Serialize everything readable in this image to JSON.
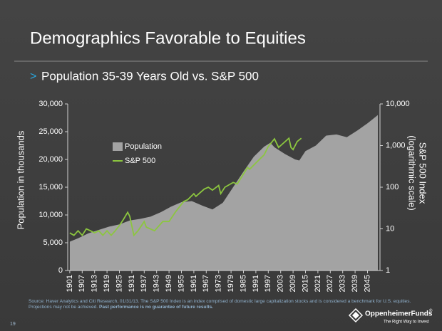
{
  "title": "Demographics Favorable to Equities",
  "bullet": ">",
  "subtitle": "Population 35-39 Years Old vs. S&P 500",
  "chart_data": {
    "type": "area-line",
    "ylabel": "Population in thousands",
    "y2label": [
      "S&P 500 Index",
      "(logarithmic scale)"
    ],
    "xlim": [
      1900,
      2050
    ],
    "xticks": [
      1901,
      1907,
      1913,
      1919,
      1925,
      1931,
      1937,
      1943,
      1949,
      1955,
      1961,
      1967,
      1973,
      1979,
      1985,
      1991,
      1997,
      2003,
      2009,
      2015,
      2021,
      2027,
      2033,
      2039,
      2045
    ],
    "ylim": [
      0,
      30000
    ],
    "yticks": [
      0,
      {
        "value": 5000,
        "label": "5,000"
      },
      {
        "value": 10000,
        "label": "10,000"
      },
      {
        "value": 15000,
        "label": "15,000"
      },
      {
        "value": 20000,
        "label": "20,000"
      },
      {
        "value": 25000,
        "label": "25,000"
      },
      {
        "value": 30000,
        "label": "30,000"
      }
    ],
    "y2lim": [
      1,
      10000
    ],
    "y2scale": "log",
    "y2ticks": [
      1,
      10,
      100,
      {
        "value": 1000,
        "label": "1,000"
      },
      {
        "value": 10000,
        "label": "10,000"
      }
    ],
    "series": [
      {
        "name": "Population",
        "color": "#a3a3a3",
        "kind": "area",
        "x": [
          1901,
          1905,
          1910,
          1915,
          1920,
          1925,
          1930,
          1935,
          1940,
          1945,
          1950,
          1955,
          1960,
          1965,
          1970,
          1975,
          1980,
          1985,
          1990,
          1995,
          1998,
          2000,
          2005,
          2010,
          2012,
          2015,
          2020,
          2025,
          2030,
          2035,
          2040,
          2045,
          2050
        ],
        "values": [
          5200,
          5800,
          6700,
          7300,
          7900,
          8300,
          9000,
          9300,
          9700,
          10500,
          11500,
          12300,
          12500,
          11700,
          11000,
          12200,
          15000,
          17800,
          20500,
          22300,
          23000,
          22200,
          21000,
          20000,
          19800,
          21500,
          22500,
          24300,
          24500,
          24000,
          25200,
          26500,
          28000
        ]
      },
      {
        "name": "S&P 500",
        "color": "#8cc63f",
        "kind": "line",
        "axis": "y2",
        "x": [
          1901,
          1903,
          1905,
          1907,
          1909,
          1911,
          1913,
          1915,
          1917,
          1919,
          1921,
          1923,
          1925,
          1927,
          1929,
          1930,
          1932,
          1934,
          1937,
          1938,
          1942,
          1946,
          1949,
          1952,
          1956,
          1958,
          1961,
          1962,
          1966,
          1968,
          1970,
          1973,
          1974,
          1976,
          1980,
          1982,
          1987,
          1988,
          1990,
          1995,
          1997,
          2000,
          2002,
          2003,
          2007,
          2008,
          2009,
          2011,
          2013
        ],
        "values": [
          8,
          7,
          9,
          7,
          10,
          9,
          8,
          9,
          7,
          9,
          7,
          9,
          12,
          17,
          25,
          20,
          7,
          9,
          15,
          11,
          9,
          15,
          15,
          25,
          45,
          50,
          70,
          60,
          90,
          100,
          85,
          110,
          70,
          100,
          130,
          120,
          300,
          270,
          340,
          600,
          950,
          1450,
          900,
          1000,
          1500,
          900,
          800,
          1250,
          1500
        ]
      }
    ]
  },
  "source": "Source: Haver Analytics and Citi Research, 01/31/13. The S&P 500 Index is an index comprised of domestic large capitalization stocks and is considered a benchmark for U.S. equities. Projections may not be achieved.",
  "disclaimer": "Past performance is no guarantee of future results.",
  "page_number": "19",
  "logo": {
    "name": "OppenheimerFunds",
    "mark": "®",
    "tagline": "The Right Way to Invest"
  }
}
